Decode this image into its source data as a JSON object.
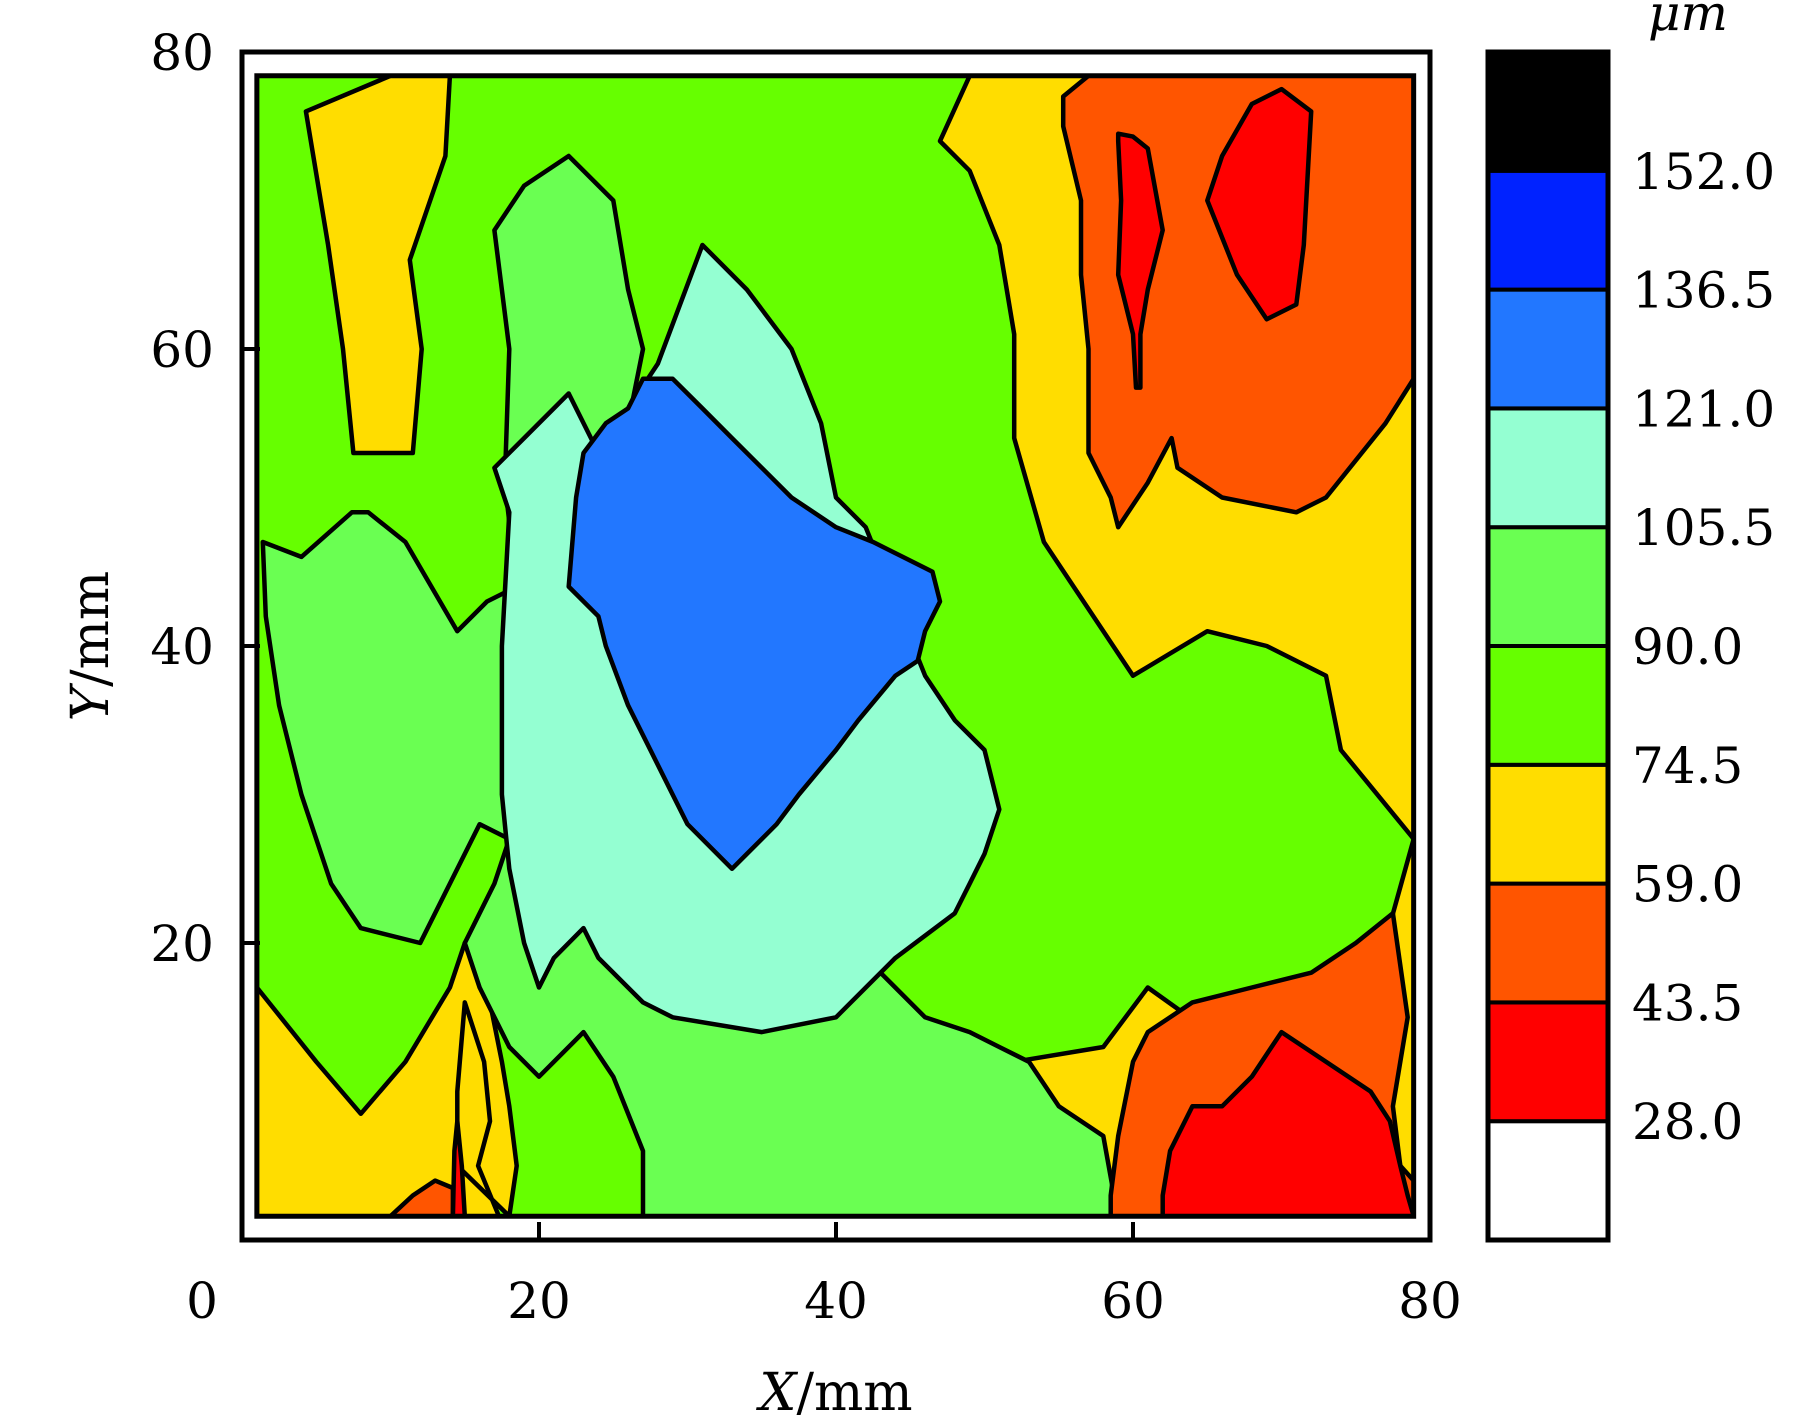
{
  "chart_data": {
    "type": "contour",
    "xlabel": {
      "var": "X",
      "unit": "/mm"
    },
    "ylabel": {
      "var": "Y",
      "unit": "/mm"
    },
    "xlim": [
      0,
      80
    ],
    "ylim": [
      0,
      80
    ],
    "x_ticks": [
      "0",
      "20",
      "40",
      "60",
      "80"
    ],
    "y_ticks": [
      "20",
      "40",
      "60",
      "80"
    ],
    "grid": false,
    "colorbar": {
      "unit": "μm",
      "levels": [
        "28.0",
        "43.5",
        "59.0",
        "74.5",
        "90.0",
        "105.5",
        "121.0",
        "136.5",
        "152.0"
      ],
      "colors": [
        "#ffffff",
        "#ff0000",
        "#ff5500",
        "#ffdd00",
        "#66ff00",
        "#6aff52",
        "#94ffd2",
        "#2277ff",
        "#0022ff",
        "#000000"
      ]
    },
    "fill_regions": [
      {
        "level_band": "74.5-90.0",
        "color": "#66ff00",
        "polygon": [
          [
            1,
            1.6
          ],
          [
            78.9,
            1.6
          ],
          [
            78.9,
            78.4
          ],
          [
            1,
            78.4
          ]
        ]
      },
      {
        "level_band": "59.0-74.5",
        "color": "#ffdd00",
        "polygon": [
          [
            51,
            78.4
          ],
          [
            78.9,
            78.4
          ],
          [
            78.9,
            27
          ],
          [
            75,
            13
          ],
          [
            72,
            12
          ],
          [
            68,
            12
          ],
          [
            61,
            17
          ],
          [
            58,
            13
          ],
          [
            52,
            12
          ],
          [
            48,
            11
          ],
          [
            46,
            6
          ],
          [
            47,
            5
          ],
          [
            53,
            1.6
          ],
          [
            78.9,
            1.6
          ],
          [
            78.9,
            27
          ],
          [
            74,
            33
          ],
          [
            73,
            38
          ],
          [
            69,
            40
          ],
          [
            65,
            41
          ],
          [
            60,
            38
          ],
          [
            56,
            44
          ],
          [
            54,
            47
          ],
          [
            52,
            54
          ],
          [
            52,
            61
          ],
          [
            51,
            67
          ],
          [
            49,
            72
          ],
          [
            47,
            74
          ],
          [
            49,
            78.4
          ]
        ]
      },
      {
        "level_band": "59.0-74.5",
        "color": "#ffdd00",
        "polygon": [
          [
            10,
            78.4
          ],
          [
            14,
            78.4
          ],
          [
            13.7,
            73
          ],
          [
            11.3,
            66
          ],
          [
            12.1,
            60
          ],
          [
            11.5,
            53
          ],
          [
            7.5,
            53
          ],
          [
            6.8,
            60
          ],
          [
            5.8,
            67
          ],
          [
            4.3,
            76
          ]
        ]
      },
      {
        "level_band": "59.0-74.5",
        "color": "#ffdd00",
        "polygon": [
          [
            1,
            1.6
          ],
          [
            18,
            1.6
          ],
          [
            14.5,
            5
          ],
          [
            14.5,
            10
          ],
          [
            15,
            16
          ],
          [
            16.3,
            12
          ],
          [
            16.7,
            8
          ],
          [
            15.9,
            5
          ],
          [
            17.3,
            1.6
          ],
          [
            1,
            1.6
          ],
          [
            1,
            17
          ],
          [
            5,
            12
          ],
          [
            8,
            8.5
          ],
          [
            11,
            12
          ],
          [
            14,
            17
          ],
          [
            15,
            20
          ],
          [
            16.5,
            17
          ],
          [
            17.5,
            12
          ],
          [
            18,
            9
          ],
          [
            18.5,
            5
          ],
          [
            18,
            1.6
          ]
        ]
      },
      {
        "level_band": "90.0-105.5",
        "color": "#6aff52",
        "polygon": [
          [
            1.4,
            47
          ],
          [
            4,
            46
          ],
          [
            7.4,
            49
          ],
          [
            8.5,
            49
          ],
          [
            11,
            47
          ],
          [
            14.5,
            41
          ],
          [
            16.5,
            43
          ],
          [
            18.5,
            44
          ],
          [
            17.7,
            51
          ],
          [
            18,
            60
          ],
          [
            17,
            68
          ],
          [
            19,
            71
          ],
          [
            22,
            73
          ],
          [
            25,
            70
          ],
          [
            26,
            64
          ],
          [
            27,
            60
          ],
          [
            26,
            55
          ],
          [
            29,
            49
          ],
          [
            31,
            45
          ],
          [
            33,
            42
          ],
          [
            35,
            41
          ],
          [
            37,
            37
          ],
          [
            38,
            31
          ],
          [
            38,
            27
          ],
          [
            40,
            24
          ],
          [
            43,
            18
          ],
          [
            46,
            15
          ],
          [
            49,
            14
          ],
          [
            51,
            13
          ],
          [
            53,
            12
          ],
          [
            55,
            9
          ],
          [
            58,
            7
          ],
          [
            58.9,
            2
          ],
          [
            60,
            1.6
          ],
          [
            27,
            1.6
          ],
          [
            27,
            6
          ],
          [
            25,
            11
          ],
          [
            23,
            14
          ],
          [
            20,
            11
          ],
          [
            18,
            13
          ],
          [
            16,
            17
          ],
          [
            15,
            20
          ],
          [
            17,
            24
          ],
          [
            18,
            27
          ],
          [
            16,
            28
          ],
          [
            14,
            24
          ],
          [
            12,
            20
          ],
          [
            8,
            21
          ],
          [
            6,
            24
          ],
          [
            4,
            30
          ],
          [
            2.5,
            36
          ],
          [
            1.6,
            42
          ]
        ]
      },
      {
        "level_band": "105.5-121.0",
        "color": "#94ffd2",
        "polygon": [
          [
            19,
            54
          ],
          [
            22,
            57
          ],
          [
            24,
            53
          ],
          [
            26,
            56
          ],
          [
            28,
            59
          ],
          [
            31,
            67
          ],
          [
            34,
            64
          ],
          [
            37,
            60
          ],
          [
            39,
            55
          ],
          [
            40,
            50
          ],
          [
            42,
            48
          ],
          [
            44,
            43
          ],
          [
            46,
            38
          ],
          [
            48,
            35
          ],
          [
            50,
            33
          ],
          [
            51,
            29
          ],
          [
            50,
            26
          ],
          [
            49,
            24
          ],
          [
            48,
            22
          ],
          [
            44,
            19
          ],
          [
            40,
            15
          ],
          [
            35,
            14
          ],
          [
            29,
            15
          ],
          [
            27,
            16
          ],
          [
            24,
            19
          ],
          [
            23,
            21
          ],
          [
            21,
            19
          ],
          [
            20,
            17
          ],
          [
            19,
            20
          ],
          [
            18,
            25
          ],
          [
            17.5,
            30
          ],
          [
            17.5,
            40
          ],
          [
            18,
            49
          ],
          [
            17,
            52
          ]
        ]
      },
      {
        "level_band": "121.0-136.5",
        "color": "#2277ff",
        "polygon": [
          [
            22,
            44
          ],
          [
            24,
            42
          ],
          [
            24.5,
            40
          ],
          [
            26,
            36
          ],
          [
            27.5,
            33
          ],
          [
            29,
            30
          ],
          [
            30,
            28
          ],
          [
            33,
            25
          ],
          [
            34,
            26
          ],
          [
            36,
            28
          ],
          [
            37.5,
            30
          ],
          [
            40,
            33
          ],
          [
            41.5,
            35
          ],
          [
            44,
            38
          ],
          [
            45.5,
            39
          ],
          [
            46,
            41
          ],
          [
            47,
            43
          ],
          [
            46.5,
            45
          ],
          [
            44.5,
            46
          ],
          [
            42.5,
            47
          ],
          [
            40,
            48
          ],
          [
            37,
            50
          ],
          [
            35,
            52
          ],
          [
            33,
            54
          ],
          [
            31,
            56
          ],
          [
            29,
            58
          ],
          [
            27,
            58
          ],
          [
            26,
            56
          ],
          [
            24.5,
            55
          ],
          [
            23,
            53
          ],
          [
            22.5,
            50
          ]
        ]
      },
      {
        "level_band": "43.5-59.0",
        "color": "#ff5500",
        "polygon": [
          [
            57,
            78.4
          ],
          [
            78.9,
            78.4
          ],
          [
            78.9,
            58
          ],
          [
            77,
            55
          ],
          [
            73,
            50
          ],
          [
            71,
            49
          ],
          [
            66,
            50
          ],
          [
            63,
            52
          ],
          [
            62.6,
            54
          ],
          [
            61,
            51
          ],
          [
            59,
            48
          ],
          [
            58.5,
            50
          ],
          [
            57,
            53
          ],
          [
            57,
            60
          ],
          [
            56.5,
            65
          ],
          [
            56.5,
            70
          ],
          [
            55.3,
            75
          ],
          [
            55.3,
            77
          ]
        ]
      },
      {
        "level_band": "43.5-59.0",
        "color": "#ff5500",
        "polygon": [
          [
            58.5,
            1.6
          ],
          [
            78.9,
            1.6
          ],
          [
            78.9,
            4
          ],
          [
            78,
            5
          ],
          [
            77.5,
            9
          ],
          [
            78,
            12
          ],
          [
            78.5,
            15
          ],
          [
            77.5,
            22
          ],
          [
            75,
            20
          ],
          [
            72,
            18
          ],
          [
            68,
            17
          ],
          [
            64,
            16
          ],
          [
            61,
            14
          ],
          [
            60,
            12
          ],
          [
            59,
            7
          ],
          [
            58.5,
            3
          ]
        ]
      },
      {
        "level_band": "43.5-59.0",
        "color": "#ff5500",
        "polygon": [
          [
            10,
            1.6
          ],
          [
            14.2,
            1.6
          ],
          [
            14.2,
            3.5
          ],
          [
            13,
            4
          ],
          [
            11.5,
            3
          ]
        ]
      },
      {
        "level_band": "28.0-43.5",
        "color": "#ff0000",
        "polygon": [
          [
            59,
            74.5
          ],
          [
            60,
            74.3
          ],
          [
            61,
            73.5
          ],
          [
            62,
            68
          ],
          [
            61,
            64
          ],
          [
            60.5,
            61
          ],
          [
            60.5,
            57.4
          ],
          [
            60.2,
            57.4
          ],
          [
            60,
            61
          ],
          [
            59,
            65
          ],
          [
            59.2,
            70
          ],
          [
            59,
            74
          ]
        ]
      },
      {
        "level_band": "28.0-43.5",
        "color": "#ff0000",
        "polygon": [
          [
            66,
            73
          ],
          [
            68,
            76.5
          ],
          [
            70,
            77.5
          ],
          [
            72,
            76
          ],
          [
            71.5,
            67
          ],
          [
            71,
            63
          ],
          [
            69,
            62
          ],
          [
            67,
            65
          ],
          [
            65,
            70
          ]
        ]
      },
      {
        "level_band": "28.0-43.5",
        "color": "#ff0000",
        "polygon": [
          [
            62,
            1.6
          ],
          [
            78.9,
            1.6
          ],
          [
            78.5,
            3
          ],
          [
            78,
            5
          ],
          [
            77.3,
            8
          ],
          [
            76,
            10
          ],
          [
            73,
            12
          ],
          [
            70,
            14
          ],
          [
            68,
            11
          ],
          [
            66,
            9
          ],
          [
            64,
            9
          ],
          [
            62.5,
            6
          ],
          [
            62,
            3
          ]
        ]
      },
      {
        "level_band": "28.0-43.5",
        "color": "#ff0000",
        "polygon": [
          [
            14.2,
            1.6
          ],
          [
            15,
            1.6
          ],
          [
            14.8,
            5
          ],
          [
            14.5,
            8
          ],
          [
            14.3,
            6
          ]
        ]
      }
    ]
  }
}
